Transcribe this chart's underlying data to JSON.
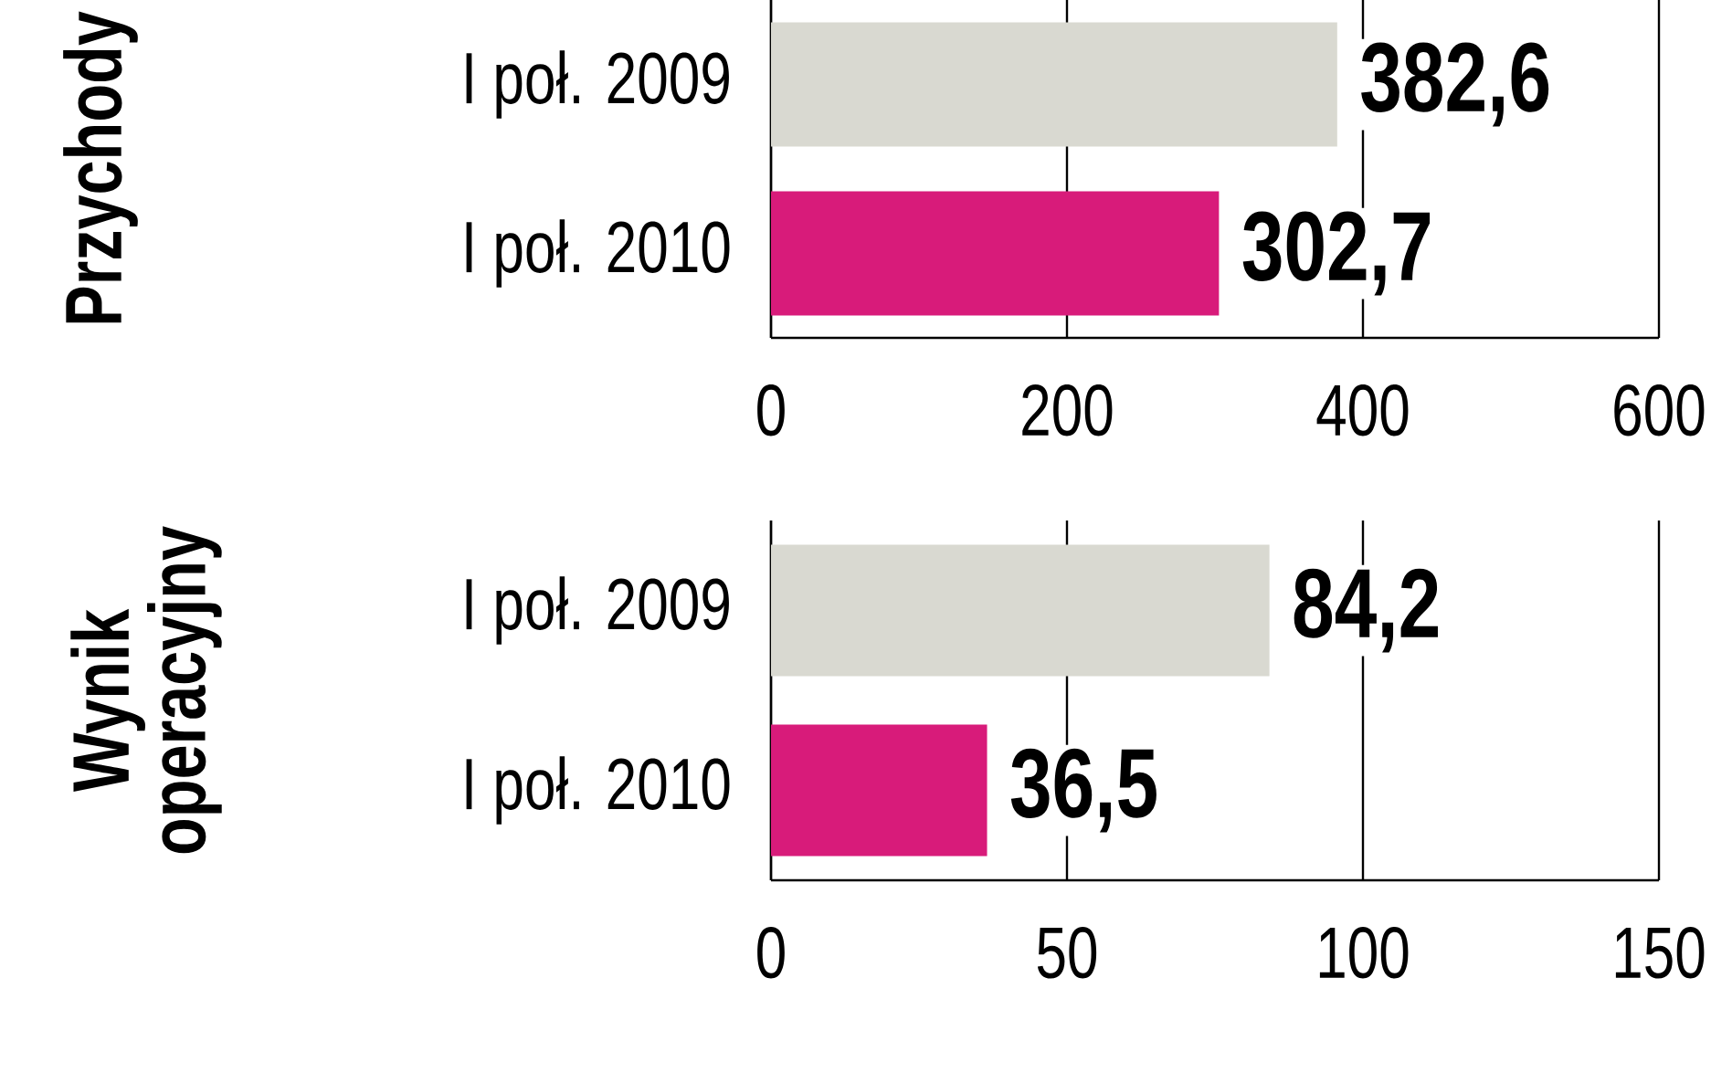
{
  "chart_data": [
    {
      "type": "bar",
      "orientation": "horizontal",
      "ylabel": "Przychody",
      "categories": [
        "I poł. 2009",
        "I poł. 2010"
      ],
      "values": [
        382.6,
        302.7
      ],
      "colors": [
        "#d9d9d1",
        "#d81b7a"
      ],
      "value_labels": [
        "382,6",
        "302,7"
      ],
      "xlim": [
        0,
        600
      ],
      "xticks": [
        0,
        200,
        400,
        600
      ],
      "grid": "x"
    },
    {
      "type": "bar",
      "orientation": "horizontal",
      "ylabel": "Wynik operacyjny",
      "categories": [
        "I poł. 2009",
        "I poł. 2010"
      ],
      "values": [
        84.2,
        36.5
      ],
      "colors": [
        "#d9d9d1",
        "#d81b7a"
      ],
      "value_labels": [
        "84,2",
        "36,5"
      ],
      "xlim": [
        0,
        150
      ],
      "xticks": [
        0,
        50,
        100,
        150
      ],
      "grid": "x"
    }
  ]
}
